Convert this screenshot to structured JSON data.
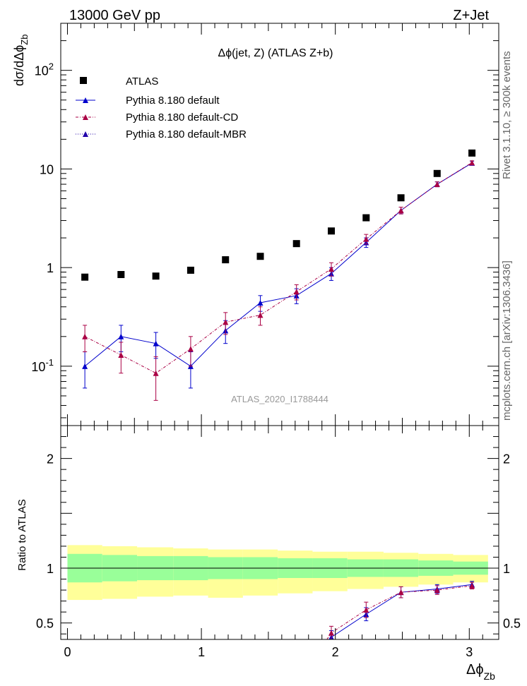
{
  "header": {
    "energy_label": "13000 GeV pp",
    "process_label": "Z+Jet",
    "side_label_top": "Rivet 3.1.10, ≥ 300k events",
    "side_label_bottom": "mcplots.cern.ch [arXiv:1306.3436]"
  },
  "chart_data": [
    {
      "type": "scatter",
      "title": "Δϕ(jet, Z) (ATLAS Z+b)",
      "watermark": "ATLAS_2020_I1788444",
      "xlabel": "Δϕ_Zb",
      "ylabel": "dσ/dΔϕ_Zb",
      "yscale": "log",
      "xlim": [
        -0.05,
        3.22
      ],
      "ylim": [
        0.025,
        300
      ],
      "y_ticks": [
        {
          "value": 0.1,
          "label": "10^-1"
        },
        {
          "value": 1,
          "label": "1"
        },
        {
          "value": 10,
          "label": "10"
        },
        {
          "value": 100,
          "label": "10^2"
        }
      ],
      "legend": [
        "ATLAS",
        "Pythia 8.180 default",
        "Pythia 8.180 default-CD",
        "Pythia 8.180 default-MBR"
      ],
      "series": [
        {
          "name": "ATLAS",
          "color": "#000000",
          "x": [
            0.13,
            0.4,
            0.66,
            0.92,
            1.18,
            1.44,
            1.71,
            1.97,
            2.23,
            2.49,
            2.76,
            3.02
          ],
          "values": [
            0.8,
            0.85,
            0.82,
            0.94,
            1.2,
            1.3,
            1.75,
            2.35,
            3.2,
            5.1,
            9.0,
            14.5
          ]
        },
        {
          "name": "Pythia 8.180 default",
          "color": "#0000cc",
          "x": [
            0.13,
            0.4,
            0.66,
            0.92,
            1.18,
            1.44,
            1.71,
            1.97,
            2.23,
            2.49,
            2.76,
            3.02
          ],
          "values": [
            0.1,
            0.2,
            0.17,
            0.1,
            0.23,
            0.44,
            0.52,
            0.87,
            1.8,
            3.8,
            7.0,
            11.5
          ],
          "err": [
            0.04,
            0.06,
            0.05,
            0.04,
            0.06,
            0.08,
            0.09,
            0.13,
            0.2,
            0.3,
            0.4,
            0.5
          ]
        },
        {
          "name": "Pythia 8.180 default-CD",
          "color": "#aa0044",
          "x": [
            0.13,
            0.4,
            0.66,
            0.92,
            1.18,
            1.44,
            1.71,
            1.97,
            2.23,
            2.49,
            2.76,
            3.02
          ],
          "values": [
            0.2,
            0.13,
            0.085,
            0.15,
            0.28,
            0.33,
            0.57,
            0.97,
            1.95,
            3.8,
            7.0,
            11.6
          ],
          "err": [
            0.06,
            0.045,
            0.04,
            0.05,
            0.07,
            0.07,
            0.1,
            0.15,
            0.22,
            0.3,
            0.4,
            0.5
          ]
        },
        {
          "name": "Pythia 8.180 default-MBR",
          "color": "#2200aa",
          "x": [],
          "values": []
        }
      ]
    },
    {
      "type": "scatter",
      "ylabel": "Ratio to ATLAS",
      "xlabel": "Δϕ_Zb",
      "xlim": [
        -0.05,
        3.22
      ],
      "ylim": [
        0.35,
        2.3
      ],
      "x_ticks": [
        0,
        1,
        2,
        3
      ],
      "y_ticks": [
        0.5,
        1,
        1.5,
        2
      ],
      "y_tick_labels": [
        "0.5",
        "1",
        "2"
      ],
      "band_edges": [
        0,
        0.26,
        0.52,
        0.79,
        1.05,
        1.31,
        1.57,
        1.83,
        2.09,
        2.36,
        2.62,
        2.88,
        3.14
      ],
      "band_inner_lo": [
        0.87,
        0.88,
        0.89,
        0.89,
        0.9,
        0.9,
        0.91,
        0.91,
        0.92,
        0.92,
        0.93,
        0.94
      ],
      "band_inner_hi": [
        1.13,
        1.12,
        1.11,
        1.11,
        1.1,
        1.1,
        1.09,
        1.09,
        1.08,
        1.08,
        1.07,
        1.06
      ],
      "band_outer_lo": [
        0.71,
        0.72,
        0.74,
        0.75,
        0.73,
        0.75,
        0.77,
        0.79,
        0.81,
        0.83,
        0.85,
        0.87
      ],
      "band_outer_hi": [
        1.21,
        1.2,
        1.19,
        1.18,
        1.17,
        1.17,
        1.16,
        1.15,
        1.15,
        1.14,
        1.13,
        1.12
      ],
      "band_colors": {
        "inner": "#99ff99",
        "outer": "#ffff99"
      },
      "series": [
        {
          "name": "Pythia 8.180 default",
          "color": "#0000cc",
          "x": [
            1.97,
            2.23,
            2.49,
            2.76,
            3.02
          ],
          "values": [
            0.37,
            0.58,
            0.78,
            0.81,
            0.85
          ],
          "err": [
            0.06,
            0.06,
            0.05,
            0.04,
            0.03
          ]
        },
        {
          "name": "Pythia 8.180 default-CD",
          "color": "#aa0044",
          "x": [
            1.97,
            2.23,
            2.49,
            2.76,
            3.02
          ],
          "values": [
            0.41,
            0.62,
            0.78,
            0.8,
            0.84
          ],
          "err": [
            0.06,
            0.07,
            0.05,
            0.04,
            0.03
          ]
        }
      ]
    }
  ]
}
